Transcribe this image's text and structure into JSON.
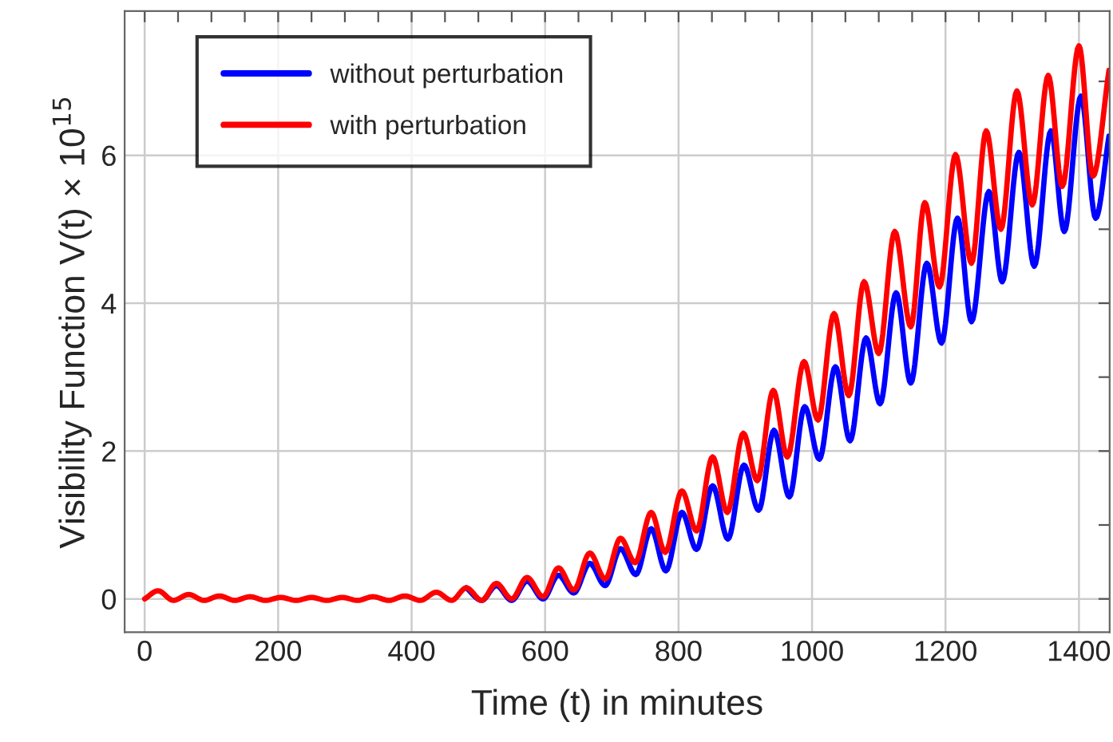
{
  "chart_data": {
    "type": "line",
    "xlabel": "Time (t) in minutes",
    "ylabel": "Visibility Function V(t) × 10$^{15}$",
    "xlim": [
      -30,
      1446
    ],
    "ylim": [
      -0.45,
      7.95
    ],
    "xticks": [
      0,
      {
        "value": 50,
        "label": null
      },
      {
        "value": 100,
        "label": null
      },
      {
        "value": 150,
        "label": null
      },
      200,
      {
        "value": 250,
        "label": null
      },
      {
        "value": 300,
        "label": null
      },
      {
        "value": 350,
        "label": null
      },
      400,
      {
        "value": 450,
        "label": null
      },
      {
        "value": 500,
        "label": null
      },
      {
        "value": 550,
        "label": null
      },
      600,
      {
        "value": 650,
        "label": null
      },
      {
        "value": 700,
        "label": null
      },
      {
        "value": 750,
        "label": null
      },
      800,
      {
        "value": 850,
        "label": null
      },
      {
        "value": 900,
        "label": null
      },
      {
        "value": 950,
        "label": null
      },
      1000,
      {
        "value": 1050,
        "label": null
      },
      {
        "value": 1100,
        "label": null
      },
      {
        "value": 1150,
        "label": null
      },
      1200,
      {
        "value": 1250,
        "label": null
      },
      {
        "value": 1300,
        "label": null
      },
      {
        "value": 1350,
        "label": null
      },
      1400
    ],
    "yticks": [
      0,
      {
        "value": 1,
        "label": null
      },
      2,
      {
        "value": 3,
        "label": null
      },
      4,
      {
        "value": 5,
        "label": null
      },
      6,
      {
        "value": 7,
        "label": null
      }
    ],
    "grid": true,
    "legend": "top left",
    "marker": "none",
    "line_style": "solid",
    "series": [
      {
        "name": "without perturbation",
        "color": "#0000ff",
        "x": [
          482,
          505,
          527,
          550,
          573,
          597,
          620,
          643,
          667,
          690,
          713,
          736,
          759,
          781,
          805,
          827,
          851,
          874,
          898,
          920,
          943,
          966,
          989,
          1011,
          1035,
          1057,
          1081,
          1102,
          1126,
          1148,
          1172,
          1194,
          1218,
          1239,
          1265,
          1285,
          1310,
          1333,
          1358,
          1378,
          1403,
          1425,
          1445
        ],
        "values": [
          0.15,
          -0.02,
          0.18,
          -0.02,
          0.24,
          0.0,
          0.32,
          0.08,
          0.48,
          0.18,
          0.68,
          0.33,
          0.95,
          0.38,
          1.17,
          0.67,
          1.53,
          0.81,
          1.81,
          1.2,
          2.28,
          1.38,
          2.6,
          1.89,
          3.14,
          2.14,
          3.53,
          2.64,
          4.14,
          2.92,
          4.54,
          3.46,
          5.15,
          3.75,
          5.51,
          4.29,
          6.04,
          4.5,
          6.33,
          4.97,
          6.8,
          5.15,
          6.26
        ]
      },
      {
        "name": "with perturbation",
        "color": "#ff0000",
        "x": [
          0,
          20,
          43,
          66,
          89,
          112,
          135,
          158,
          181,
          204,
          227,
          250,
          273,
          296,
          319,
          342,
          366,
          390,
          413,
          437,
          460,
          482,
          505,
          527,
          550,
          573,
          597,
          620,
          643,
          667,
          690,
          713,
          735,
          759,
          780,
          805,
          827,
          851,
          873,
          897,
          918,
          942,
          963,
          988,
          1009,
          1033,
          1055,
          1078,
          1100,
          1124,
          1148,
          1169,
          1191,
          1215,
          1239,
          1261,
          1283,
          1307,
          1330,
          1354,
          1375,
          1400,
          1421,
          1445
        ],
        "values": [
          0,
          0.11,
          -0.02,
          0.06,
          -0.02,
          0.04,
          -0.02,
          0.03,
          -0.02,
          0.02,
          -0.02,
          0.02,
          -0.02,
          0.02,
          -0.02,
          0.03,
          -0.02,
          0.04,
          -0.02,
          0.09,
          -0.02,
          0.15,
          -0.02,
          0.21,
          0.0,
          0.29,
          0.03,
          0.42,
          0.12,
          0.62,
          0.27,
          0.82,
          0.49,
          1.17,
          0.63,
          1.46,
          0.92,
          1.92,
          1.17,
          2.24,
          1.6,
          2.82,
          1.92,
          3.21,
          2.42,
          3.86,
          2.75,
          4.29,
          3.32,
          4.97,
          3.68,
          5.36,
          4.22,
          6.01,
          4.54,
          6.33,
          5.0,
          6.87,
          5.33,
          7.08,
          5.58,
          7.48,
          5.72,
          7.15
        ]
      }
    ]
  }
}
